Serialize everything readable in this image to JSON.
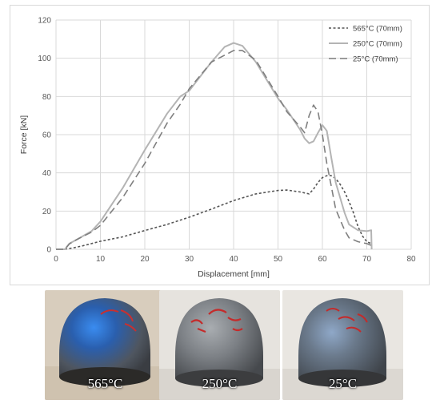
{
  "chart_data": {
    "type": "line",
    "title": "",
    "xlabel": "Displacement [mm]",
    "ylabel": "Force [kN]",
    "xlim": [
      0,
      80
    ],
    "ylim": [
      0,
      120
    ],
    "xticks": [
      0,
      10,
      20,
      30,
      40,
      50,
      60,
      70,
      80
    ],
    "yticks": [
      0,
      20,
      40,
      60,
      80,
      100,
      120
    ],
    "grid": true,
    "legend_position": "top-right",
    "series": [
      {
        "name": "565°C (70mm)",
        "color": "#555555",
        "dash": "short-dash",
        "x": [
          0,
          2,
          4,
          6,
          8,
          10,
          15,
          20,
          25,
          30,
          35,
          40,
          45,
          50,
          52,
          55,
          56,
          57,
          58,
          59,
          60,
          61,
          62,
          63,
          64,
          65,
          66,
          67,
          68,
          69,
          70,
          71
        ],
        "y": [
          0,
          0.1,
          0.8,
          1.8,
          3,
          4.2,
          6.5,
          9.8,
          13,
          16.8,
          21,
          25.5,
          29,
          30.8,
          31,
          30,
          29.5,
          29,
          31.5,
          35,
          37.5,
          38.5,
          38.5,
          37,
          34,
          30,
          25,
          19,
          12,
          7,
          4,
          3
        ]
      },
      {
        "name": "250°C (70mm)",
        "color": "#b4b4b4",
        "dash": "solid",
        "x": [
          0,
          2,
          3,
          5,
          8,
          10,
          15,
          20,
          25,
          28,
          30,
          35,
          38,
          40,
          42,
          45,
          50,
          52,
          55,
          56,
          57,
          58,
          59,
          60,
          61,
          62,
          63,
          65,
          66,
          68,
          70,
          71,
          71.1
        ],
        "y": [
          0,
          0,
          3,
          5.5,
          9.5,
          14.5,
          32,
          52,
          71,
          80,
          83,
          98,
          106,
          108,
          106.5,
          98,
          79,
          73,
          62.5,
          58,
          55.5,
          56.5,
          61,
          65,
          62,
          48,
          35,
          19,
          13,
          10,
          9.5,
          10,
          0
        ]
      },
      {
        "name": "25°C (70mm)",
        "color": "#7f7f7f",
        "dash": "long-dash",
        "x": [
          0,
          2,
          3,
          5,
          8,
          10,
          15,
          20,
          25,
          28,
          30,
          35,
          40,
          42,
          45,
          50,
          52,
          55,
          56,
          57,
          58,
          59,
          60,
          61,
          62,
          63,
          65,
          66,
          68,
          70,
          71
        ],
        "y": [
          0,
          0,
          2.8,
          5.5,
          9,
          12.5,
          27,
          45,
          66,
          76,
          84,
          98,
          104,
          104,
          99,
          80,
          72,
          64,
          61,
          70,
          75.5,
          72,
          60,
          45,
          33,
          21,
          10,
          6,
          4,
          3,
          2
        ]
      }
    ]
  },
  "photos": [
    {
      "label": "565°C",
      "tint": "#3a77c9"
    },
    {
      "label": "250°C",
      "tint": "#7d8185"
    },
    {
      "label": "25°C",
      "tint": "#5a6f8a"
    }
  ]
}
